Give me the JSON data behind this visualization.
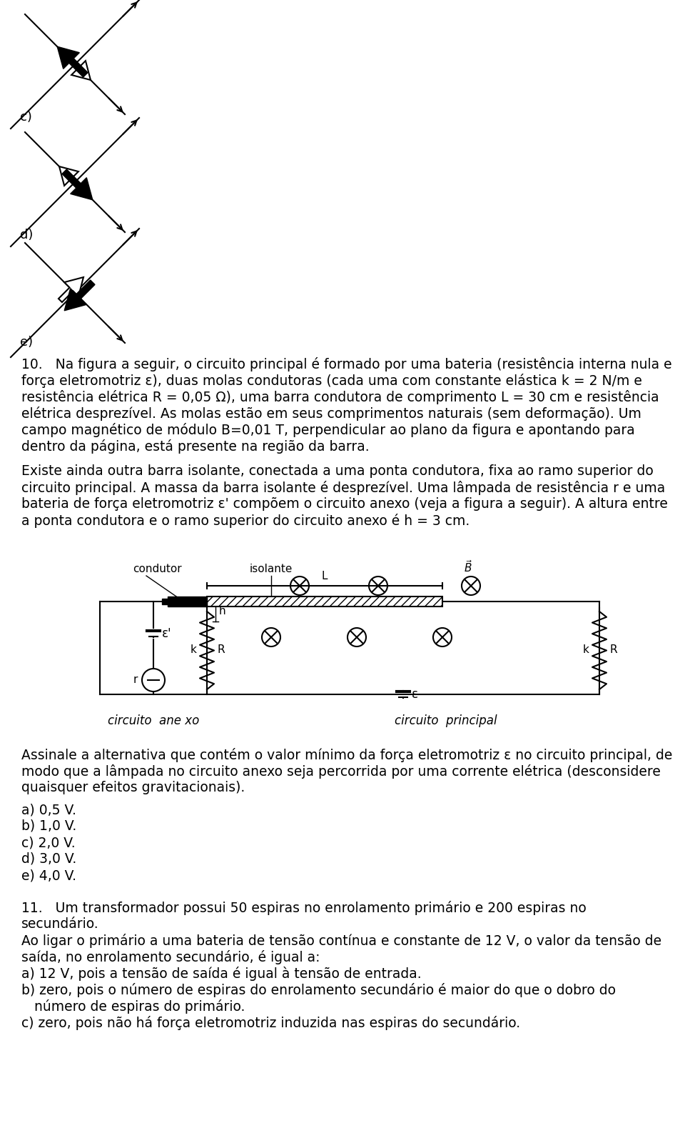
{
  "bg_color": "#ffffff",
  "fig_width": 9.6,
  "fig_height": 15.79,
  "paragraph10_lines": [
    "10.   Na figura a seguir, o circuito principal é formado por uma bateria (resistência interna nula e",
    "força eletromotriz ε), duas molas condutoras (cada uma com constante elástica k = 2 N/m e",
    "resistência elétrica R = 0,05 Ω), uma barra condutora de comprimento L = 30 cm e resistência",
    "elétrica desprezível. As molas estão em seus comprimentos naturais (sem deformação). Um",
    "campo magnético de módulo B=0,01 T, perpendicular ao plano da figura e apontando para",
    "dentro da página, está presente na região da barra."
  ],
  "paragraph_existe": [
    "Existe ainda outra barra isolante, conectada a uma ponta condutora, fixa ao ramo superior do",
    "circuito principal. A massa da barra isolante é desprezível. Uma lâmpada de resistência r e uma",
    "bateria de força eletromotriz ε' compõem o circuito anexo (veja a figura a seguir). A altura entre",
    "a ponta condutora e o ramo superior do circuito anexo é h = 3 cm."
  ],
  "paragraph_assinale": [
    "Assinale a alternativa que contém o valor mínimo da força eletromotriz ε no circuito principal, de",
    "modo que a lâmpada no circuito anexo seja percorrida por uma corrente elétrica (desconsidere",
    "quaisquer efeitos gravitacionais)."
  ],
  "answers": [
    "a) 0,5 V.",
    "b) 1,0 V.",
    "c) 2,0 V.",
    "d) 3,0 V.",
    "e) 4,0 V."
  ],
  "paragraph11": [
    "11.   Um transformador possui 50 espiras no enrolamento primário e 200 espiras no",
    "secundário.",
    "Ao ligar o primário a uma bateria de tensão contínua e constante de 12 V, o valor da tensão de",
    "saída, no enrolamento secundário, é igual a:",
    "a) 12 V, pois a tensão de saída é igual à tensão de entrada.",
    "b) zero, pois o número de espiras do enrolamento secundário é maior do que o dobro do",
    "   número de espiras do primário.",
    "c) zero, pois não há força eletromotriz induzida nas espiras do secundário."
  ]
}
